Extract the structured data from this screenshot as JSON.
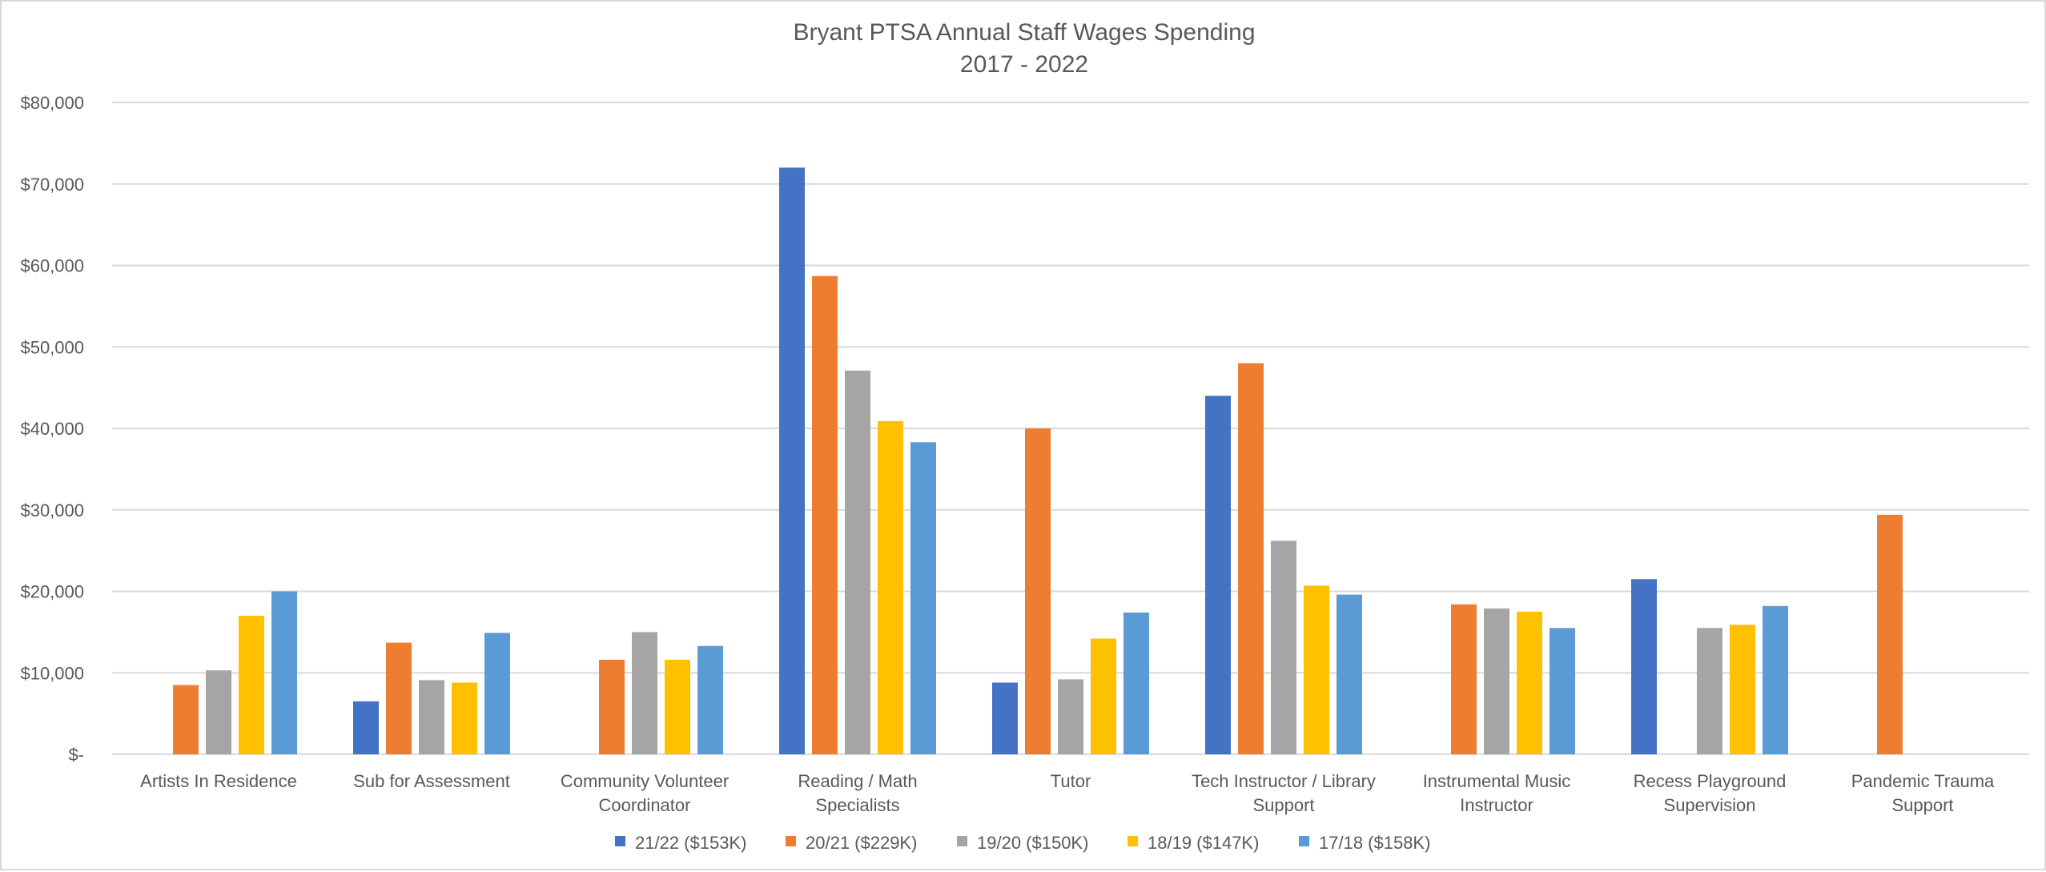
{
  "chart_data": {
    "type": "bar",
    "title": "Bryant PTSA Annual Staff Wages Spending",
    "subtitle": "2017 - 2022",
    "xlabel": "",
    "ylabel": "",
    "ylim": [
      0,
      80000
    ],
    "y_ticks": [
      0,
      10000,
      20000,
      30000,
      40000,
      50000,
      60000,
      70000,
      80000
    ],
    "y_tick_labels": [
      "$-",
      "$10,000",
      "$20,000",
      "$30,000",
      "$40,000",
      "$50,000",
      "$60,000",
      "$70,000",
      "$80,000"
    ],
    "grid": true,
    "legend_position": "bottom",
    "categories": [
      [
        "Artists In Residence"
      ],
      [
        "Sub for Assessment"
      ],
      [
        "Community Volunteer",
        "Coordinator"
      ],
      [
        "Reading / Math",
        "Specialists"
      ],
      [
        "Tutor"
      ],
      [
        "Tech Instructor / Library",
        "Support"
      ],
      [
        "Instrumental Music",
        "Instructor"
      ],
      [
        "Recess Playground",
        "Supervision"
      ],
      [
        "Pandemic Trauma",
        "Support"
      ]
    ],
    "series": [
      {
        "name": "21/22 ($153K)",
        "color": "#4472c4",
        "values": [
          0,
          6500,
          0,
          72000,
          8800,
          44000,
          0,
          21500,
          0
        ]
      },
      {
        "name": "20/21 ($229K)",
        "color": "#ed7d31",
        "values": [
          8500,
          13700,
          11600,
          58700,
          40000,
          48000,
          18400,
          0,
          29400
        ]
      },
      {
        "name": "19/20 ($150K)",
        "color": "#a5a5a5",
        "values": [
          10300,
          9100,
          15000,
          47100,
          9200,
          26200,
          17900,
          15500,
          0
        ]
      },
      {
        "name": "18/19 ($147K)",
        "color": "#ffc000",
        "values": [
          17000,
          8800,
          11600,
          40900,
          14200,
          20700,
          17500,
          15900,
          0
        ]
      },
      {
        "name": "17/18 ($158K)",
        "color": "#5b9bd5",
        "values": [
          20000,
          14900,
          13300,
          38300,
          17400,
          19600,
          15500,
          18200,
          0
        ]
      }
    ]
  }
}
